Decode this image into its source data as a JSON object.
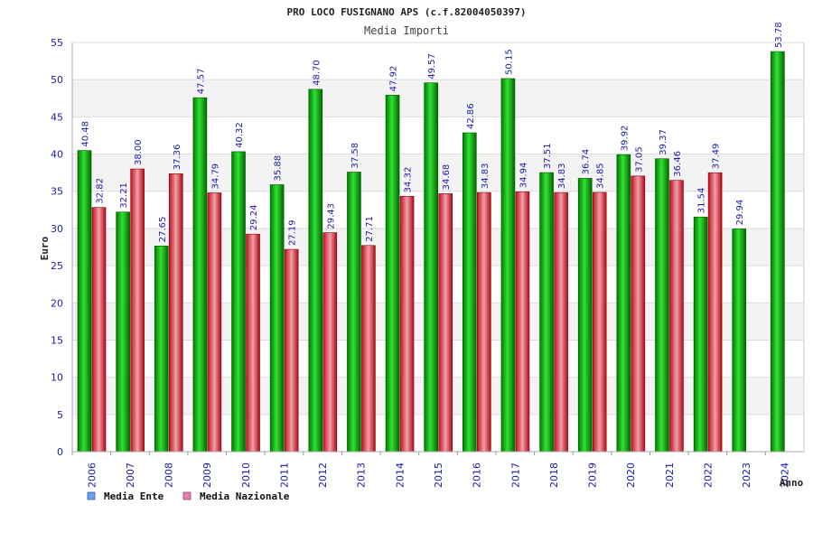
{
  "chart_data": {
    "type": "bar",
    "title": "PRO LOCO FUSIGNANO APS (c.f.82004050397)",
    "subtitle": "Media Importi",
    "xlabel": "Anno",
    "ylabel": "Euro",
    "ylim": [
      0,
      55
    ],
    "yticks": [
      "0",
      "5",
      "10",
      "15",
      "20",
      "25",
      "30",
      "35",
      "40",
      "45",
      "50",
      "55"
    ],
    "grid": true,
    "legend_position": "bottom-left",
    "categories": [
      "2006",
      "2007",
      "2008",
      "2009",
      "2010",
      "2011",
      "2012",
      "2013",
      "2014",
      "2015",
      "2016",
      "2017",
      "2018",
      "2019",
      "2020",
      "2021",
      "2022",
      "2023",
      "2024"
    ],
    "series": [
      {
        "name": "Media Ente",
        "color": "#00b000",
        "legend_color": "#6aa0e8",
        "values": [
          40.48,
          32.21,
          27.65,
          47.57,
          40.32,
          35.88,
          48.7,
          37.58,
          47.92,
          49.57,
          42.86,
          50.15,
          37.51,
          36.74,
          39.92,
          39.37,
          31.54,
          29.94,
          53.78
        ],
        "labels": [
          "40.48",
          "32.21",
          "27.65",
          "47.57",
          "40.32",
          "35.88",
          "48.70",
          "37.58",
          "47.92",
          "49.57",
          "42.86",
          "50.15",
          "37.51",
          "36.74",
          "39.92",
          "39.37",
          "31.54",
          "29.94",
          "53.78"
        ]
      },
      {
        "name": "Media Nazionale",
        "color": "#e83040",
        "legend_color": "#e080b0",
        "values": [
          32.82,
          38.0,
          37.36,
          34.79,
          29.24,
          27.19,
          29.43,
          27.71,
          34.32,
          34.68,
          34.83,
          34.94,
          34.83,
          34.85,
          37.05,
          36.46,
          37.49,
          null,
          null
        ],
        "labels": [
          "32.82",
          "38.00",
          "37.36",
          "34.79",
          "29.24",
          "27.19",
          "29.43",
          "27.71",
          "34.32",
          "34.68",
          "34.83",
          "34.94",
          "34.83",
          "34.85",
          "37.05",
          "36.46",
          "37.49",
          null,
          null
        ]
      }
    ]
  }
}
